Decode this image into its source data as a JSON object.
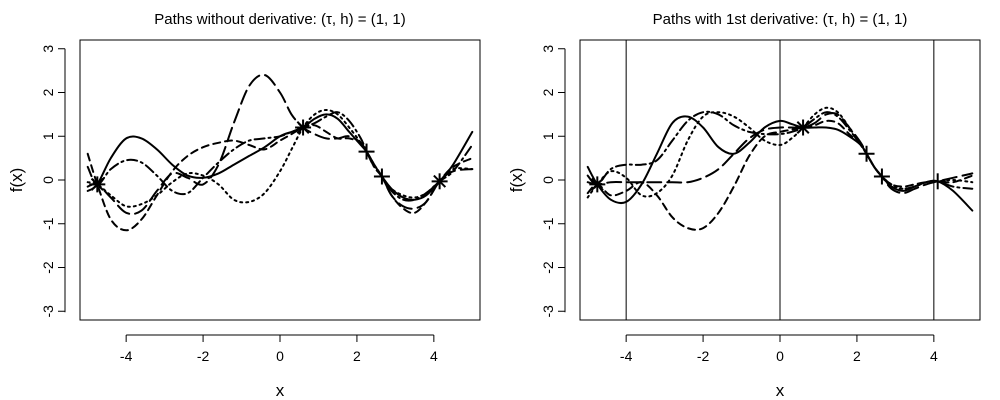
{
  "chart_data": [
    {
      "type": "line",
      "title": "Paths without derivative: (τ, h) = (1, 1)",
      "xlabel": "x",
      "ylabel": "f(x)",
      "xlim": [
        -5.2,
        5.2
      ],
      "ylim": [
        -3.2,
        3.2
      ],
      "xticks": [
        -4,
        -2,
        0,
        2,
        4
      ],
      "xtick_labels": [
        "-4",
        "-2",
        "0",
        "2",
        "4"
      ],
      "yticks": [
        -3,
        -2,
        -1,
        0,
        1,
        2,
        3
      ],
      "ytick_labels": [
        "-3",
        "-2",
        "-1",
        "0",
        "1",
        "2",
        "3"
      ],
      "grid": false,
      "observations": [
        {
          "x": -4.75,
          "y": -0.1,
          "marker": "asterisk"
        },
        {
          "x": 0.6,
          "y": 1.2,
          "marker": "asterisk"
        },
        {
          "x": 2.25,
          "y": 0.65,
          "marker": "plus"
        },
        {
          "x": 2.65,
          "y": 0.08,
          "marker": "plus"
        },
        {
          "x": 4.15,
          "y": -0.03,
          "marker": "asterisk"
        }
      ],
      "series": [
        {
          "style": "solid",
          "color": "#000000",
          "x": [
            -5,
            -4.75,
            -4.4,
            -4.0,
            -3.6,
            -3.2,
            -2.8,
            -2.4,
            -2.0,
            -1.6,
            -1.2,
            -0.8,
            -0.4,
            0.0,
            0.3,
            0.6,
            0.9,
            1.2,
            1.5,
            1.8,
            2.1,
            2.25,
            2.45,
            2.65,
            2.9,
            3.2,
            3.5,
            3.8,
            4.15,
            4.5,
            5.0
          ],
          "y": [
            -0.25,
            -0.1,
            0.5,
            0.95,
            0.95,
            0.7,
            0.35,
            0.1,
            0.05,
            0.15,
            0.35,
            0.55,
            0.75,
            1.0,
            1.1,
            1.2,
            1.4,
            1.5,
            1.4,
            1.1,
            0.8,
            0.65,
            0.35,
            0.08,
            -0.2,
            -0.4,
            -0.45,
            -0.35,
            -0.03,
            0.35,
            1.1
          ]
        },
        {
          "style": "dashed",
          "color": "#000000",
          "x": [
            -5,
            -4.75,
            -4.4,
            -4.0,
            -3.6,
            -3.2,
            -2.8,
            -2.4,
            -2.0,
            -1.6,
            -1.2,
            -0.8,
            -0.4,
            0.0,
            0.3,
            0.6,
            0.9,
            1.2,
            1.5,
            1.8,
            2.1,
            2.25,
            2.45,
            2.65,
            2.9,
            3.2,
            3.5,
            3.8,
            4.15,
            4.5,
            5.0
          ],
          "y": [
            0.6,
            -0.1,
            -0.9,
            -1.15,
            -0.9,
            -0.35,
            0.2,
            0.55,
            0.75,
            0.85,
            0.9,
            0.8,
            0.7,
            0.9,
            1.05,
            1.2,
            1.25,
            1.1,
            0.95,
            0.95,
            0.85,
            0.65,
            0.3,
            0.08,
            -0.35,
            -0.65,
            -0.75,
            -0.5,
            -0.03,
            0.3,
            0.5
          ]
        },
        {
          "style": "longdash",
          "color": "#000000",
          "x": [
            -5,
            -4.75,
            -4.4,
            -4.0,
            -3.6,
            -3.2,
            -2.8,
            -2.4,
            -2.0,
            -1.6,
            -1.2,
            -0.8,
            -0.4,
            0.0,
            0.3,
            0.6,
            0.9,
            1.2,
            1.5,
            1.8,
            2.1,
            2.25,
            2.45,
            2.65,
            2.9,
            3.2,
            3.5,
            3.8,
            4.15,
            4.5,
            5.0
          ],
          "y": [
            -0.15,
            -0.1,
            -0.4,
            -0.75,
            -0.7,
            -0.25,
            0.15,
            0.05,
            -0.1,
            0.35,
            1.3,
            2.15,
            2.4,
            2.0,
            1.5,
            1.2,
            1.05,
            0.95,
            0.95,
            1.0,
            0.85,
            0.65,
            0.35,
            0.08,
            -0.35,
            -0.6,
            -0.65,
            -0.5,
            -0.03,
            0.2,
            0.25
          ]
        },
        {
          "style": "dotted",
          "color": "#000000",
          "x": [
            -5,
            -4.75,
            -4.4,
            -4.0,
            -3.6,
            -3.2,
            -2.8,
            -2.4,
            -2.0,
            -1.6,
            -1.2,
            -0.8,
            -0.4,
            0.0,
            0.3,
            0.6,
            0.9,
            1.2,
            1.5,
            1.8,
            2.1,
            2.25,
            2.45,
            2.65,
            2.9,
            3.2,
            3.5,
            3.8,
            4.15,
            4.5,
            5.0
          ],
          "y": [
            -0.05,
            -0.1,
            -0.35,
            -0.6,
            -0.55,
            -0.35,
            -0.05,
            0.15,
            0.1,
            -0.1,
            -0.45,
            -0.5,
            -0.3,
            0.2,
            0.7,
            1.2,
            1.5,
            1.6,
            1.5,
            1.2,
            0.85,
            0.65,
            0.35,
            0.08,
            -0.2,
            -0.35,
            -0.4,
            -0.3,
            -0.03,
            0.25,
            0.25
          ]
        },
        {
          "style": "dashdot",
          "color": "#000000",
          "x": [
            -5,
            -4.75,
            -4.4,
            -4.0,
            -3.6,
            -3.2,
            -2.8,
            -2.4,
            -2.0,
            -1.6,
            -1.2,
            -0.8,
            -0.4,
            0.0,
            0.3,
            0.6,
            0.9,
            1.2,
            1.5,
            1.8,
            2.1,
            2.25,
            2.45,
            2.65,
            2.9,
            3.2,
            3.5,
            3.8,
            4.15,
            4.5,
            5.0
          ],
          "y": [
            0.3,
            -0.1,
            0.25,
            0.45,
            0.4,
            0.1,
            -0.25,
            -0.3,
            0.05,
            0.4,
            0.7,
            0.9,
            0.95,
            1.0,
            1.1,
            1.2,
            1.3,
            1.45,
            1.55,
            1.35,
            0.95,
            0.65,
            0.3,
            0.08,
            -0.25,
            -0.45,
            -0.45,
            -0.3,
            -0.03,
            0.2,
            0.8
          ]
        }
      ]
    },
    {
      "type": "line",
      "title": "Paths with 1st derivative: (τ, h) = (1, 1)",
      "xlabel": "x",
      "ylabel": "f(x)",
      "xlim": [
        -5.2,
        5.2
      ],
      "ylim": [
        -3.2,
        3.2
      ],
      "xticks": [
        -4,
        -2,
        0,
        2,
        4
      ],
      "xtick_labels": [
        "-4",
        "-2",
        "0",
        "2",
        "4"
      ],
      "yticks": [
        -3,
        -2,
        -1,
        0,
        1,
        2,
        3
      ],
      "ytick_labels": [
        "-3",
        "-2",
        "-1",
        "0",
        "1",
        "2",
        "3"
      ],
      "vlines": [
        -4,
        0,
        4
      ],
      "grid": false,
      "observations": [
        {
          "x": -4.75,
          "y": -0.1,
          "marker": "asterisk"
        },
        {
          "x": 0.6,
          "y": 1.2,
          "marker": "asterisk"
        },
        {
          "x": 2.25,
          "y": 0.6,
          "marker": "plus"
        },
        {
          "x": 2.65,
          "y": 0.08,
          "marker": "plus"
        },
        {
          "x": 4.1,
          "y": -0.03,
          "marker": "plus"
        }
      ],
      "series": [
        {
          "style": "solid",
          "color": "#000000",
          "x": [
            -5,
            -4.75,
            -4.4,
            -4.0,
            -3.6,
            -3.2,
            -2.8,
            -2.4,
            -2.0,
            -1.6,
            -1.2,
            -0.8,
            -0.4,
            0.0,
            0.3,
            0.6,
            0.9,
            1.2,
            1.5,
            1.8,
            2.1,
            2.25,
            2.45,
            2.65,
            2.9,
            3.2,
            3.5,
            3.8,
            4.1,
            4.5,
            5.0
          ],
          "y": [
            0.3,
            -0.1,
            -0.45,
            -0.5,
            -0.1,
            0.6,
            1.3,
            1.45,
            1.2,
            0.75,
            0.6,
            0.85,
            1.2,
            1.35,
            1.28,
            1.2,
            1.2,
            1.2,
            1.15,
            1.0,
            0.8,
            0.6,
            0.3,
            0.08,
            -0.15,
            -0.25,
            -0.15,
            -0.05,
            -0.03,
            -0.25,
            -0.7
          ]
        },
        {
          "style": "dashed",
          "color": "#000000",
          "x": [
            -5,
            -4.75,
            -4.4,
            -4.0,
            -3.6,
            -3.2,
            -2.8,
            -2.4,
            -2.0,
            -1.6,
            -1.2,
            -0.8,
            -0.4,
            0.0,
            0.3,
            0.6,
            0.9,
            1.2,
            1.5,
            1.8,
            2.1,
            2.25,
            2.45,
            2.65,
            2.9,
            3.2,
            3.5,
            3.8,
            4.1,
            4.5,
            5.0
          ],
          "y": [
            -0.3,
            -0.1,
            -0.35,
            -0.25,
            -0.05,
            -0.35,
            -0.85,
            -1.1,
            -1.1,
            -0.75,
            -0.15,
            0.55,
            1.0,
            1.1,
            1.15,
            1.2,
            1.25,
            1.35,
            1.3,
            1.05,
            0.8,
            0.6,
            0.3,
            0.08,
            -0.1,
            -0.15,
            -0.1,
            -0.05,
            -0.03,
            -0.05,
            0.1
          ]
        },
        {
          "style": "longdash",
          "color": "#000000",
          "x": [
            -5,
            -4.75,
            -4.4,
            -4.0,
            -3.6,
            -3.2,
            -2.8,
            -2.4,
            -2.0,
            -1.6,
            -1.2,
            -0.8,
            -0.4,
            0.0,
            0.3,
            0.6,
            0.9,
            1.2,
            1.5,
            1.8,
            2.1,
            2.25,
            2.45,
            2.65,
            2.9,
            3.2,
            3.5,
            3.8,
            4.1,
            4.5,
            5.0
          ],
          "y": [
            -0.05,
            -0.1,
            -0.05,
            -0.05,
            -0.05,
            -0.05,
            -0.05,
            -0.05,
            0.05,
            0.25,
            0.6,
            0.95,
            1.15,
            1.2,
            1.2,
            1.2,
            1.3,
            1.5,
            1.5,
            1.2,
            0.85,
            0.6,
            0.3,
            0.08,
            -0.2,
            -0.3,
            -0.2,
            -0.1,
            -0.03,
            0.05,
            0.15
          ]
        },
        {
          "style": "dotted",
          "color": "#000000",
          "x": [
            -5,
            -4.75,
            -4.4,
            -4.0,
            -3.6,
            -3.2,
            -2.8,
            -2.4,
            -2.0,
            -1.6,
            -1.2,
            -0.8,
            -0.4,
            0.0,
            0.3,
            0.6,
            0.9,
            1.2,
            1.5,
            1.8,
            2.1,
            2.25,
            2.45,
            2.65,
            2.9,
            3.2,
            3.5,
            3.8,
            4.1,
            4.5,
            5.0
          ],
          "y": [
            -0.4,
            -0.1,
            0.2,
            0.05,
            -0.35,
            -0.3,
            0.1,
            0.9,
            1.45,
            1.55,
            1.45,
            1.2,
            0.9,
            0.8,
            0.95,
            1.2,
            1.5,
            1.65,
            1.55,
            1.2,
            0.8,
            0.6,
            0.3,
            0.08,
            -0.1,
            -0.2,
            -0.15,
            -0.05,
            -0.03,
            0.0,
            -0.05
          ]
        },
        {
          "style": "dashdot",
          "color": "#000000",
          "x": [
            -5,
            -4.75,
            -4.4,
            -4.0,
            -3.6,
            -3.2,
            -2.8,
            -2.4,
            -2.0,
            -1.6,
            -1.2,
            -0.8,
            -0.4,
            0.0,
            0.3,
            0.6,
            0.9,
            1.2,
            1.5,
            1.8,
            2.1,
            2.25,
            2.45,
            2.65,
            2.9,
            3.2,
            3.5,
            3.8,
            4.1,
            4.5,
            5.0
          ],
          "y": [
            0.1,
            -0.1,
            0.25,
            0.35,
            0.35,
            0.45,
            0.9,
            1.35,
            1.55,
            1.5,
            1.25,
            1.1,
            1.05,
            1.05,
            1.1,
            1.2,
            1.4,
            1.55,
            1.45,
            1.15,
            0.8,
            0.6,
            0.3,
            0.08,
            -0.15,
            -0.2,
            -0.15,
            -0.05,
            -0.03,
            -0.15,
            -0.2
          ]
        }
      ]
    }
  ]
}
